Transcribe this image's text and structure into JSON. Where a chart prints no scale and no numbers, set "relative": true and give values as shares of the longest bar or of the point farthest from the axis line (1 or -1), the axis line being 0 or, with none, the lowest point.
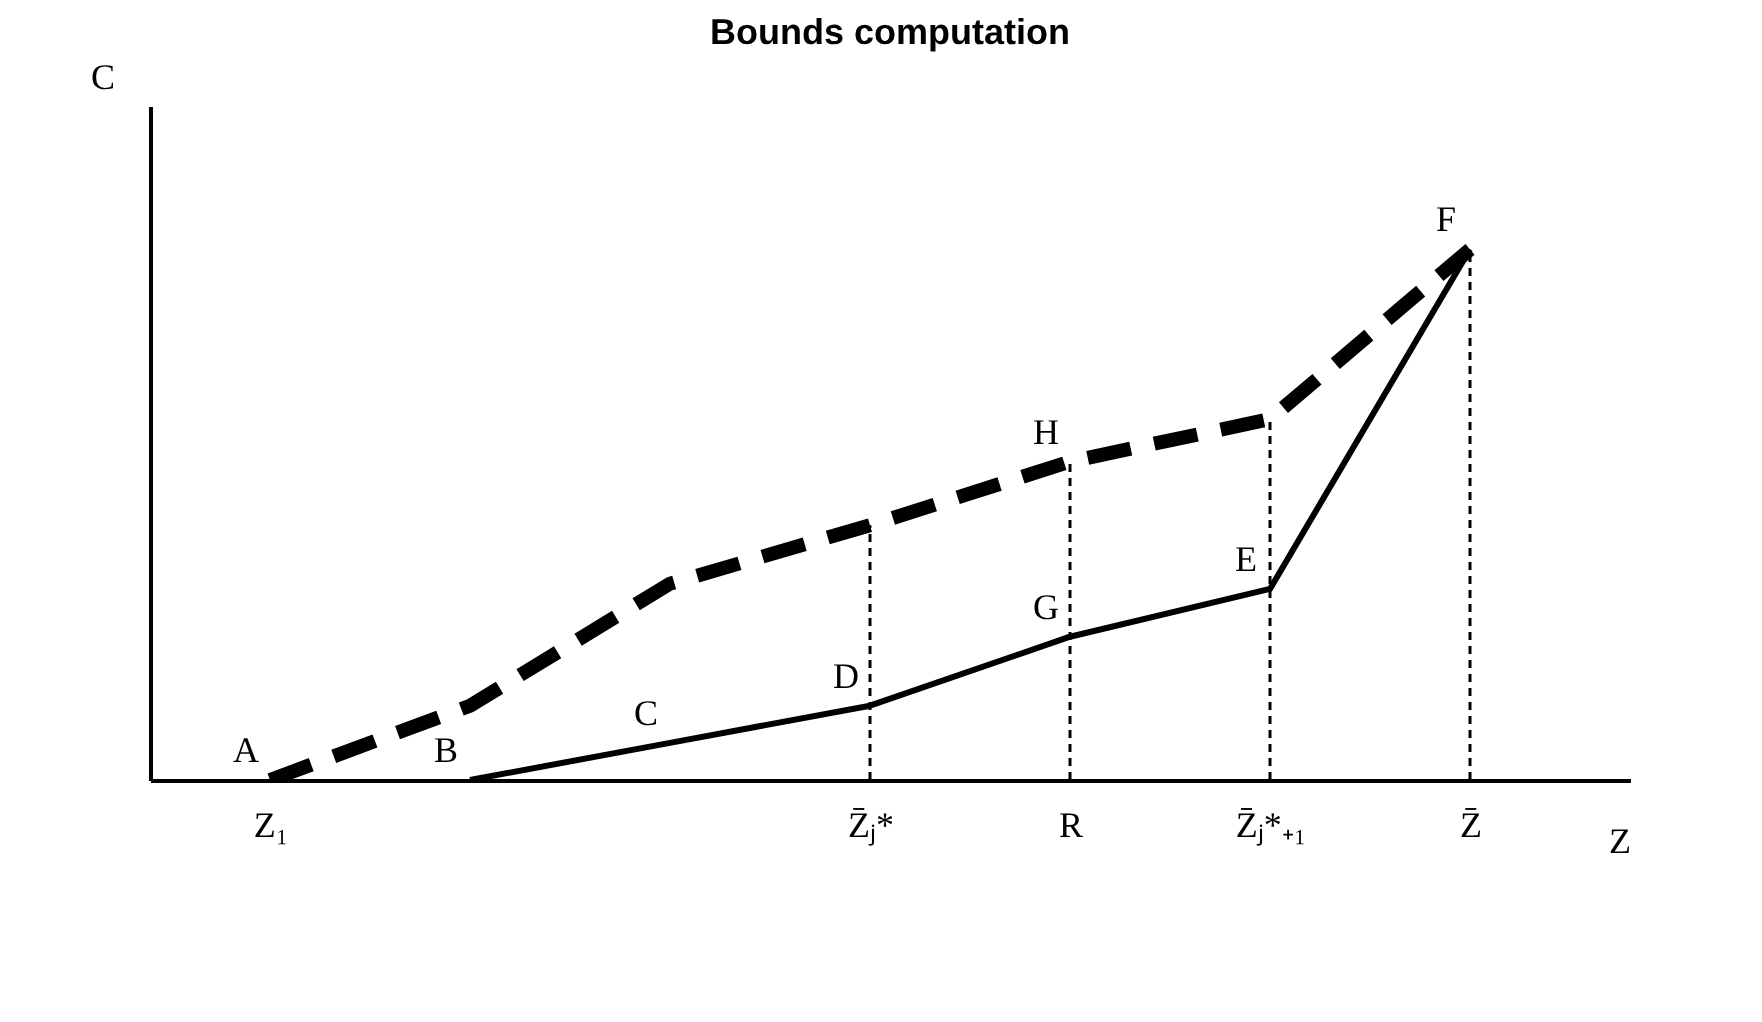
{
  "chart_data": {
    "type": "line",
    "title": "Bounds computation",
    "xlabel": "Z",
    "ylabel": "C",
    "relative": true,
    "categories": [
      "Z₁",
      null,
      null,
      "Z̄ⱼ*",
      "R",
      "Z̄ⱼ*₊₁",
      "Z̄"
    ],
    "series": [
      {
        "color": "#000000",
        "line_style": "dashed",
        "values": [
          0,
          0.14,
          0.37,
          0.48,
          0.6,
          0.68,
          1
        ]
      },
      {
        "color": "#000000",
        "line_style": "solid",
        "values": [
          null,
          0,
          0.07,
          0.14,
          0.27,
          0.36,
          1
        ]
      }
    ],
    "ref_lines": [
      {
        "axis": "x",
        "value": "Z̄ⱼ*",
        "line_style": "dashed"
      },
      {
        "axis": "x",
        "value": "R",
        "line_style": "dashed"
      },
      {
        "axis": "x",
        "value": "Z̄ⱼ*₊₁",
        "line_style": "dashed"
      },
      {
        "axis": "x",
        "value": "Z̄",
        "line_style": "dashed"
      }
    ],
    "annotations": [
      {
        "text": "A",
        "x": "Z₁",
        "y": 0
      },
      "B",
      "C",
      {
        "text": "D",
        "x": "Z̄ⱼ*",
        "y": 0.14
      },
      {
        "text": "E",
        "x": "Z̄ⱼ*₊₁",
        "y": 0.36
      },
      {
        "text": "F",
        "x": "Z̄",
        "y": 1
      },
      {
        "text": "G",
        "x": "R",
        "y": 0.27
      },
      {
        "text": "H",
        "x": "R",
        "y": 0.6
      }
    ],
    "grid": false
  }
}
